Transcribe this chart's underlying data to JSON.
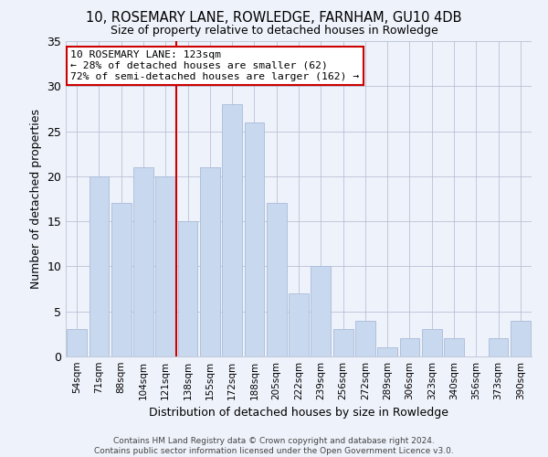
{
  "title": "10, ROSEMARY LANE, ROWLEDGE, FARNHAM, GU10 4DB",
  "subtitle": "Size of property relative to detached houses in Rowledge",
  "xlabel": "Distribution of detached houses by size in Rowledge",
  "ylabel": "Number of detached properties",
  "categories": [
    "54sqm",
    "71sqm",
    "88sqm",
    "104sqm",
    "121sqm",
    "138sqm",
    "155sqm",
    "172sqm",
    "188sqm",
    "205sqm",
    "222sqm",
    "239sqm",
    "256sqm",
    "272sqm",
    "289sqm",
    "306sqm",
    "323sqm",
    "340sqm",
    "356sqm",
    "373sqm",
    "390sqm"
  ],
  "values": [
    3,
    20,
    17,
    21,
    20,
    15,
    21,
    28,
    26,
    17,
    7,
    10,
    3,
    4,
    1,
    2,
    3,
    2,
    0,
    2,
    4
  ],
  "bar_color": "#c8d8ee",
  "bar_edge_color": "#aabbd8",
  "annotation_line1": "10 ROSEMARY LANE: 123sqm",
  "annotation_line2": "← 28% of detached houses are smaller (62)",
  "annotation_line3": "72% of semi-detached houses are larger (162) →",
  "annotation_box_facecolor": "#ffffff",
  "annotation_box_edgecolor": "#cc0000",
  "vline_color": "#cc0000",
  "grid_color": "#b0b8d0",
  "background_color": "#eef2fa",
  "ylim": [
    0,
    35
  ],
  "yticks": [
    0,
    5,
    10,
    15,
    20,
    25,
    30,
    35
  ],
  "vline_x_index": 4.5,
  "footer1": "Contains HM Land Registry data © Crown copyright and database right 2024.",
  "footer2": "Contains public sector information licensed under the Open Government Licence v3.0."
}
